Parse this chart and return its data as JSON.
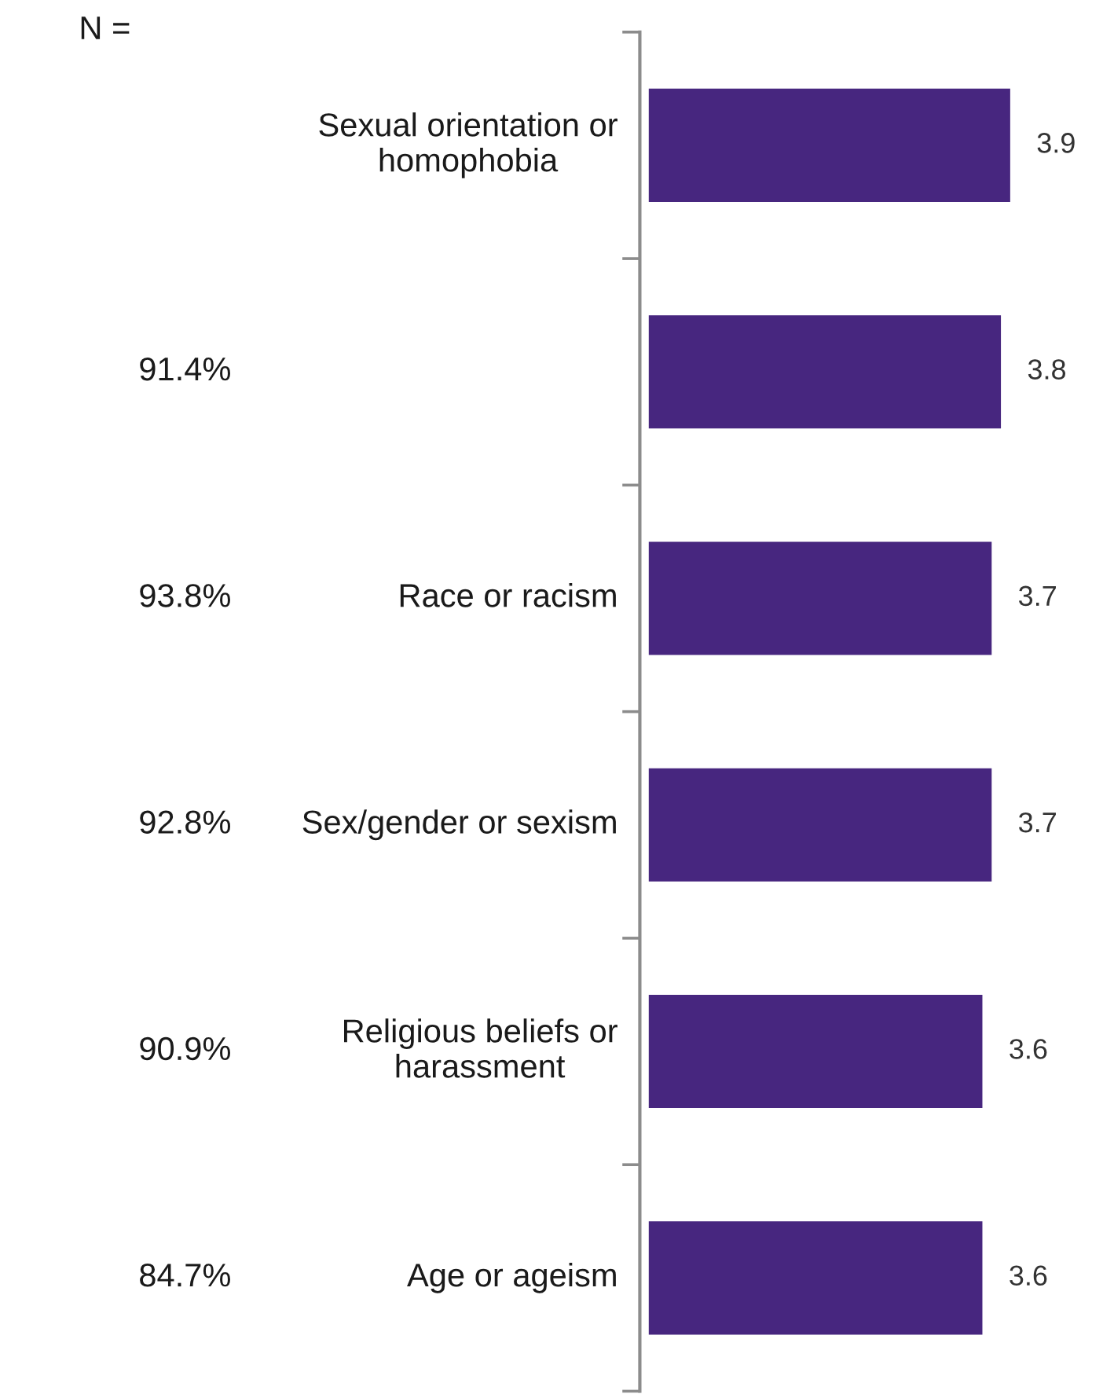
{
  "chart_data": {
    "type": "bar",
    "orientation": "horizontal",
    "categories": [
      "Sexual orientation or\nhomophobia",
      null,
      "Race or racism",
      "Sex/gender or sexism",
      "Religious beliefs or\nharassment",
      "Age or ageism"
    ],
    "values": [
      3.9,
      3.8,
      3.7,
      3.7,
      3.6,
      3.6
    ],
    "color": "#47267f",
    "data_labels": true,
    "tick_labels": "y",
    "grid": false,
    "legend": false,
    "annotations": [
      "N =",
      "91.4%",
      "93.8%",
      "92.8%",
      "90.9%",
      "84.7%"
    ]
  }
}
